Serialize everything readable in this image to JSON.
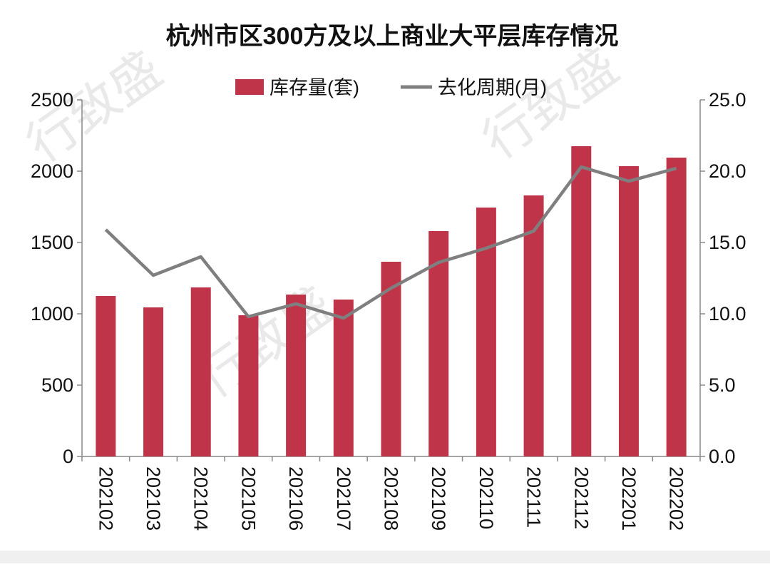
{
  "chart_data": {
    "type": "bar",
    "title": "杭州市区300方及以上商业大平层库存情况",
    "categories": [
      "202102",
      "202103",
      "202104",
      "202105",
      "202106",
      "202107",
      "202108",
      "202109",
      "202110",
      "202111",
      "202112",
      "202201",
      "202202"
    ],
    "series": [
      {
        "name": "库存量(套)",
        "type": "bar",
        "axis": "left",
        "color": "#c0344a",
        "values": [
          1125,
          1045,
          1185,
          990,
          1135,
          1100,
          1365,
          1580,
          1745,
          1830,
          2175,
          2035,
          2095
        ]
      },
      {
        "name": "去化周期(月)",
        "type": "line",
        "axis": "right",
        "color": "#7f7f7f",
        "values": [
          15.9,
          12.7,
          14.0,
          9.8,
          10.7,
          9.7,
          11.8,
          13.6,
          14.6,
          15.8,
          20.3,
          19.3,
          20.2
        ]
      }
    ],
    "y_left": {
      "ylim": [
        0,
        2500
      ],
      "ticks": [
        "0",
        "500",
        "1000",
        "1500",
        "2000",
        "2500"
      ]
    },
    "y_right": {
      "ylim": [
        0,
        25
      ],
      "ticks": [
        "0.0",
        "5.0",
        "10.0",
        "15.0",
        "20.0",
        "25.0"
      ]
    },
    "legend_position": "top-center",
    "grid": false
  },
  "watermark": "行致盛"
}
